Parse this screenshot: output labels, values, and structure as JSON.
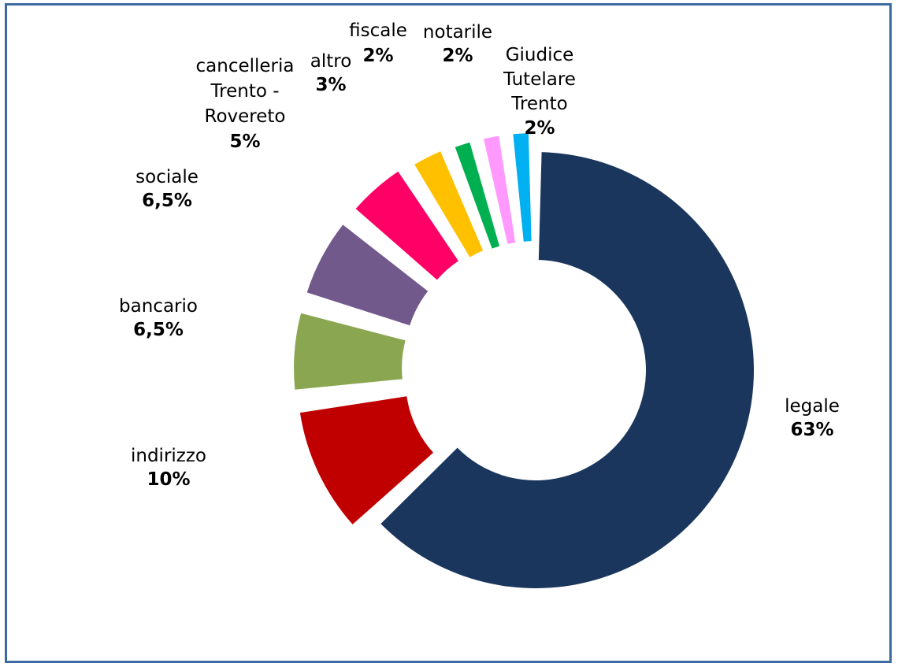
{
  "chart_data": {
    "type": "donut",
    "title": "",
    "exploded": true,
    "legend": "none",
    "slices": [
      {
        "name": "legale",
        "value": 63,
        "value_label": "63%",
        "color": "#1b365d"
      },
      {
        "name": "indirizzo",
        "value": 10,
        "value_label": "10%",
        "color": "#c00000"
      },
      {
        "name": "bancario",
        "value": 6.5,
        "value_label": "6,5%",
        "color": "#8aa650"
      },
      {
        "name": "sociale",
        "value": 6.5,
        "value_label": "6,5%",
        "color": "#72598c"
      },
      {
        "name": "cancelleria Trento - Rovereto",
        "value": 5,
        "value_label": "5%",
        "color": "#ff0066"
      },
      {
        "name": "altro",
        "value": 3,
        "value_label": "3%",
        "color": "#ffc000"
      },
      {
        "name": "fiscale",
        "value": 2,
        "value_label": "2%",
        "color": "#00b050"
      },
      {
        "name": "notarile",
        "value": 2,
        "value_label": "2%",
        "color": "#ff99ff"
      },
      {
        "name": "Giudice Tutelare Trento",
        "value": 2,
        "value_label": "2%",
        "color": "#00b0f0"
      }
    ]
  }
}
